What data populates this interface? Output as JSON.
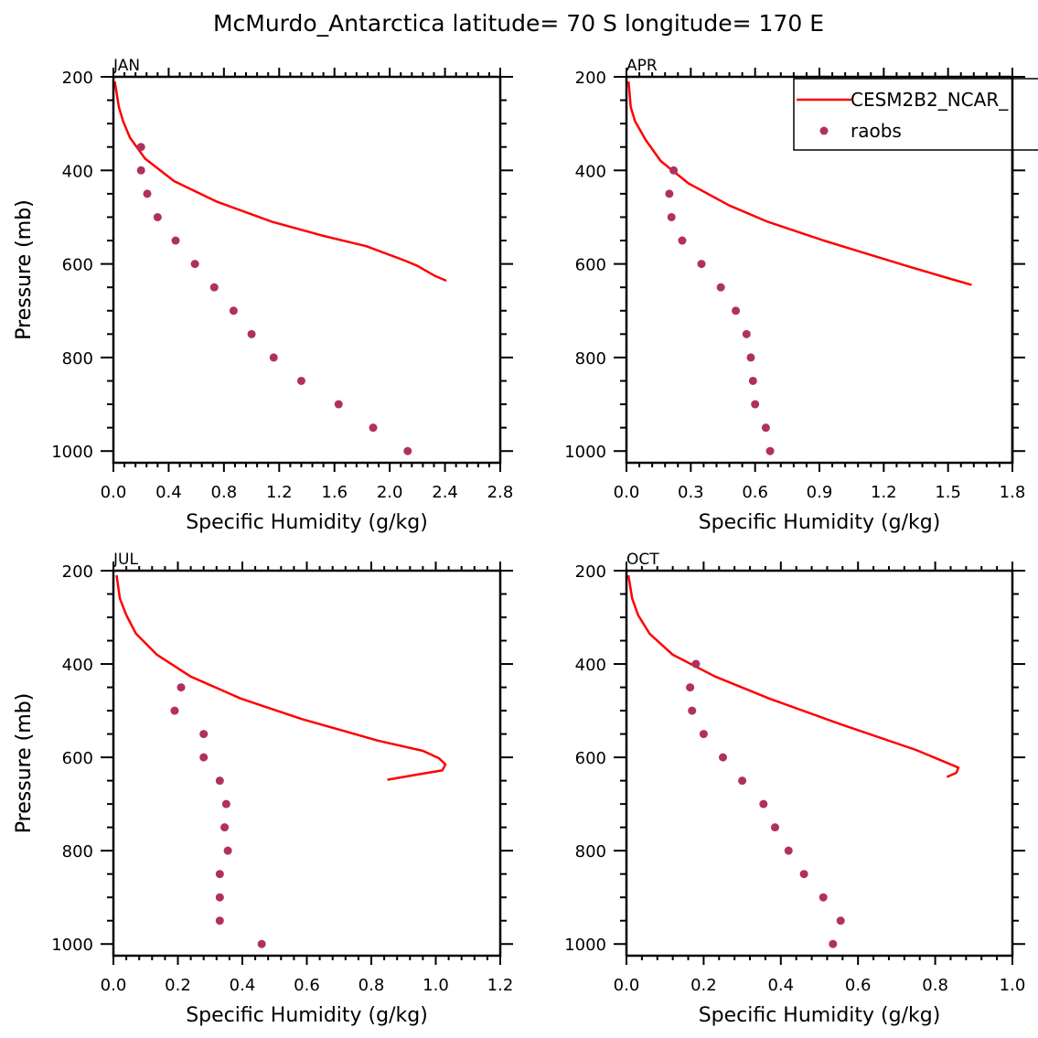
{
  "chart_data": {
    "type": "line",
    "title": "McMurdo_Antarctica  latitude= 70 S longitude= 170 E",
    "legend": {
      "placement": "top-right",
      "entries": [
        {
          "name": "CESM2B2_NCAR_",
          "style": "line",
          "color": "#ff0000"
        },
        {
          "name": "raobs",
          "style": "marker",
          "color": "#b03060"
        }
      ]
    },
    "colors": {
      "model": "#ff0000",
      "obs": "#b03060",
      "axes": "#000000"
    },
    "ylabel": "Pressure (mb)",
    "ylim": [
      200,
      1025
    ],
    "y_inverted": true,
    "yticks": [
      200,
      400,
      600,
      800,
      1000
    ],
    "yticklabels": [
      "200",
      "400",
      "600",
      "800",
      "1000"
    ],
    "panels": [
      {
        "month": "JAN",
        "xlabel": "Specific Humidity (g/kg)",
        "xlim": [
          0.0,
          2.8
        ],
        "xticks": [
          0.0,
          0.4,
          0.8,
          1.2,
          1.6,
          2.0,
          2.4,
          2.8
        ],
        "xticklabels": [
          "0.0",
          "0.4",
          "0.8",
          "1.2",
          "1.6",
          "2.0",
          "2.4",
          "2.8"
        ],
        "series": [
          {
            "name": "CESM2B2_NCAR_",
            "type": "line",
            "x": [
              0.01,
              0.04,
              0.07,
              0.12,
              0.23,
              0.44,
              0.75,
              1.15,
              1.52,
              1.83,
              2.11,
              2.2,
              2.33,
              2.41
            ],
            "y": [
              210,
              265,
              295,
              330,
              375,
              423,
              467,
              510,
              540,
              562,
              593,
              604,
              626,
              636
            ]
          },
          {
            "name": "raobs",
            "type": "scatter",
            "x": [
              0.2,
              0.2,
              0.245,
              0.32,
              0.45,
              0.59,
              0.73,
              0.87,
              1.0,
              1.16,
              1.36,
              1.63,
              1.88,
              2.13
            ],
            "y": [
              350,
              400,
              450,
              500,
              550,
              600,
              650,
              700,
              750,
              800,
              850,
              900,
              950,
              1000
            ]
          }
        ]
      },
      {
        "month": "APR",
        "xlabel": "Specific Humidity (g/kg)",
        "xlim": [
          0.0,
          1.8
        ],
        "xticks": [
          0.0,
          0.3,
          0.6,
          0.9,
          1.2,
          1.5,
          1.8
        ],
        "xticklabels": [
          "0.0",
          "0.3",
          "0.6",
          "0.9",
          "1.2",
          "1.5",
          "1.8"
        ],
        "series": [
          {
            "name": "CESM2B2_NCAR_",
            "type": "line",
            "x": [
              0.01,
              0.02,
              0.04,
              0.09,
              0.16,
              0.29,
              0.48,
              0.66,
              0.92,
              1.07,
              1.32,
              1.52,
              1.61
            ],
            "y": [
              210,
              265,
              295,
              335,
              380,
              428,
              475,
              510,
              550,
              571,
              606,
              633,
              645
            ]
          },
          {
            "name": "raobs",
            "type": "scatter",
            "x": [
              0.22,
              0.2,
              0.21,
              0.26,
              0.35,
              0.44,
              0.51,
              0.56,
              0.58,
              0.59,
              0.6,
              0.65,
              0.67
            ],
            "y": [
              400,
              450,
              500,
              550,
              600,
              650,
              700,
              750,
              800,
              850,
              900,
              950,
              1000
            ]
          }
        ]
      },
      {
        "month": "JUL",
        "xlabel": "Specific Humidity (g/kg)",
        "xlim": [
          0.0,
          1.2
        ],
        "xticks": [
          0.0,
          0.2,
          0.4,
          0.6,
          0.8,
          1.0,
          1.2
        ],
        "xticklabels": [
          "0.0",
          "0.2",
          "0.4",
          "0.6",
          "0.8",
          "1.0",
          "1.2"
        ],
        "series": [
          {
            "name": "CESM2B2_NCAR_",
            "type": "line",
            "x": [
              0.01,
              0.02,
              0.04,
              0.07,
              0.135,
              0.24,
              0.395,
              0.585,
              0.82,
              0.96,
              1.01,
              1.03,
              1.02,
              0.95,
              0.85
            ],
            "y": [
              210,
              260,
              295,
              335,
              380,
              427,
              474,
              518,
              564,
              586,
              602,
              615,
              628,
              636,
              648
            ]
          },
          {
            "name": "raobs",
            "type": "scatter",
            "x": [
              0.21,
              0.19,
              0.28,
              0.28,
              0.33,
              0.35,
              0.345,
              0.355,
              0.33,
              0.33,
              0.33,
              0.46
            ],
            "y": [
              450,
              500,
              550,
              600,
              650,
              700,
              750,
              800,
              850,
              900,
              950,
              1000
            ]
          }
        ]
      },
      {
        "month": "OCT",
        "xlabel": "Specific Humidity (g/kg)",
        "xlim": [
          0.0,
          1.0
        ],
        "xticks": [
          0.0,
          0.2,
          0.4,
          0.6,
          0.8,
          1.0
        ],
        "xticklabels": [
          "0.0",
          "0.2",
          "0.4",
          "0.6",
          "0.8",
          "1.0"
        ],
        "series": [
          {
            "name": "CESM2B2_NCAR_",
            "type": "line",
            "x": [
              0.005,
              0.015,
              0.03,
              0.06,
              0.12,
              0.23,
              0.37,
              0.555,
              0.75,
              0.86,
              0.855,
              0.83
            ],
            "y": [
              210,
              260,
              295,
              335,
              380,
              427,
              474,
              529,
              584,
              622,
              633,
              642
            ]
          },
          {
            "name": "raobs",
            "type": "scatter",
            "x": [
              0.18,
              0.165,
              0.17,
              0.2,
              0.25,
              0.3,
              0.355,
              0.385,
              0.42,
              0.46,
              0.51,
              0.555,
              0.535
            ],
            "y": [
              400,
              450,
              500,
              550,
              600,
              650,
              700,
              750,
              800,
              850,
              900,
              950,
              1000
            ]
          }
        ]
      }
    ]
  }
}
